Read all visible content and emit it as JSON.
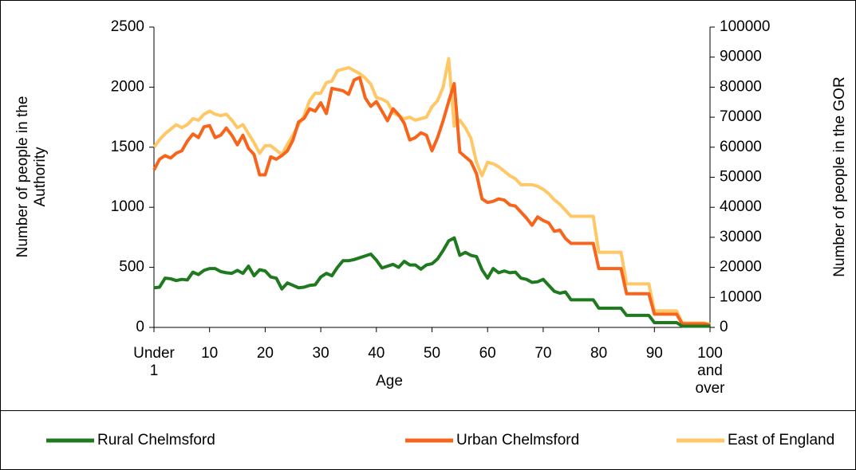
{
  "chart_data": {
    "type": "line",
    "xlabel": "Age",
    "ylabel": "Number of people in the Authority",
    "y2label": "Number of people in the GOR",
    "categories": [
      "Under 1",
      null,
      null,
      null,
      null,
      null,
      null,
      null,
      null,
      null,
      "10",
      null,
      null,
      null,
      null,
      null,
      null,
      null,
      null,
      null,
      "20",
      null,
      null,
      null,
      null,
      null,
      null,
      null,
      null,
      null,
      "30",
      null,
      null,
      null,
      null,
      null,
      null,
      null,
      null,
      null,
      "40",
      null,
      null,
      null,
      null,
      null,
      null,
      null,
      null,
      null,
      "50",
      null,
      null,
      null,
      null,
      null,
      null,
      null,
      null,
      null,
      "60",
      null,
      null,
      null,
      null,
      null,
      null,
      null,
      null,
      null,
      "70",
      null,
      null,
      null,
      null,
      null,
      null,
      null,
      null,
      null,
      "80",
      null,
      null,
      null,
      null,
      null,
      null,
      null,
      null,
      null,
      "90",
      null,
      null,
      null,
      null,
      null,
      null,
      null,
      null,
      null,
      "100 and over"
    ],
    "ylim": [
      0,
      2500
    ],
    "yticks": [
      0,
      500,
      1000,
      1500,
      2000,
      2500
    ],
    "y2lim": [
      0,
      100000
    ],
    "y2ticks": [
      0,
      10000,
      20000,
      30000,
      40000,
      50000,
      60000,
      70000,
      80000,
      90000,
      100000
    ],
    "grid": false,
    "legend": "bottom",
    "series": [
      {
        "name": "Rural Chelmsford",
        "color": "#1f7a1f",
        "axis": "y",
        "values": [
          330,
          335,
          410,
          405,
          390,
          400,
          395,
          460,
          440,
          475,
          490,
          490,
          465,
          455,
          450,
          475,
          450,
          510,
          430,
          480,
          470,
          420,
          410,
          320,
          370,
          350,
          330,
          335,
          350,
          355,
          420,
          450,
          430,
          500,
          555,
          555,
          565,
          580,
          595,
          610,
          560,
          495,
          510,
          525,
          500,
          550,
          520,
          520,
          485,
          520,
          530,
          570,
          640,
          720,
          745,
          600,
          625,
          600,
          590,
          480,
          410,
          490,
          455,
          470,
          455,
          460,
          410,
          400,
          375,
          380,
          400,
          350,
          300,
          285,
          295,
          230,
          230,
          230,
          230,
          230,
          160,
          160,
          160,
          160,
          160,
          100,
          100,
          100,
          100,
          100,
          40,
          40,
          40,
          40,
          40,
          10,
          10,
          10,
          10,
          10,
          10
        ]
      },
      {
        "name": "Urban Chelmsford",
        "color": "#f7651d",
        "axis": "y",
        "values": [
          1310,
          1400,
          1430,
          1410,
          1450,
          1470,
          1550,
          1610,
          1580,
          1670,
          1680,
          1580,
          1600,
          1660,
          1600,
          1520,
          1600,
          1490,
          1440,
          1270,
          1270,
          1420,
          1400,
          1430,
          1470,
          1560,
          1710,
          1740,
          1820,
          1800,
          1870,
          1780,
          1990,
          1980,
          1970,
          1940,
          2060,
          2080,
          1910,
          1840,
          1880,
          1800,
          1720,
          1820,
          1770,
          1700,
          1560,
          1580,
          1620,
          1600,
          1470,
          1580,
          1720,
          1880,
          2030,
          1460,
          1420,
          1380,
          1280,
          1070,
          1040,
          1050,
          1070,
          1060,
          1020,
          1010,
          960,
          910,
          850,
          920,
          890,
          870,
          800,
          810,
          740,
          700,
          700,
          700,
          700,
          700,
          490,
          490,
          490,
          490,
          490,
          280,
          280,
          280,
          280,
          280,
          110,
          110,
          110,
          110,
          110,
          30,
          30,
          30,
          30,
          30,
          20
        ]
      },
      {
        "name": "East of England",
        "color": "#ffc766",
        "axis": "y2",
        "values": [
          60000,
          62500,
          64500,
          66000,
          67500,
          66500,
          67500,
          69500,
          69000,
          71000,
          72000,
          71000,
          70500,
          71000,
          69000,
          66500,
          67500,
          64500,
          61500,
          58000,
          60500,
          60500,
          59000,
          57500,
          61000,
          64000,
          67500,
          70500,
          75500,
          78000,
          78000,
          81500,
          82000,
          85500,
          86000,
          86500,
          85500,
          84500,
          83000,
          81000,
          76500,
          76000,
          75000,
          71500,
          70500,
          69500,
          70000,
          69000,
          69500,
          70000,
          73500,
          75500,
          80000,
          89500,
          67000,
          69000,
          66500,
          63000,
          55000,
          50500,
          55000,
          54500,
          53500,
          52000,
          50500,
          49500,
          47500,
          47500,
          47500,
          47000,
          46000,
          44500,
          42500,
          41000,
          39000,
          37000,
          37000,
          37000,
          37000,
          37000,
          25000,
          25000,
          25000,
          25000,
          25000,
          14500,
          14500,
          14500,
          14500,
          14500,
          5500,
          5500,
          5500,
          5500,
          5500,
          1500,
          1500,
          1500,
          1500,
          1500,
          1000
        ]
      }
    ]
  }
}
